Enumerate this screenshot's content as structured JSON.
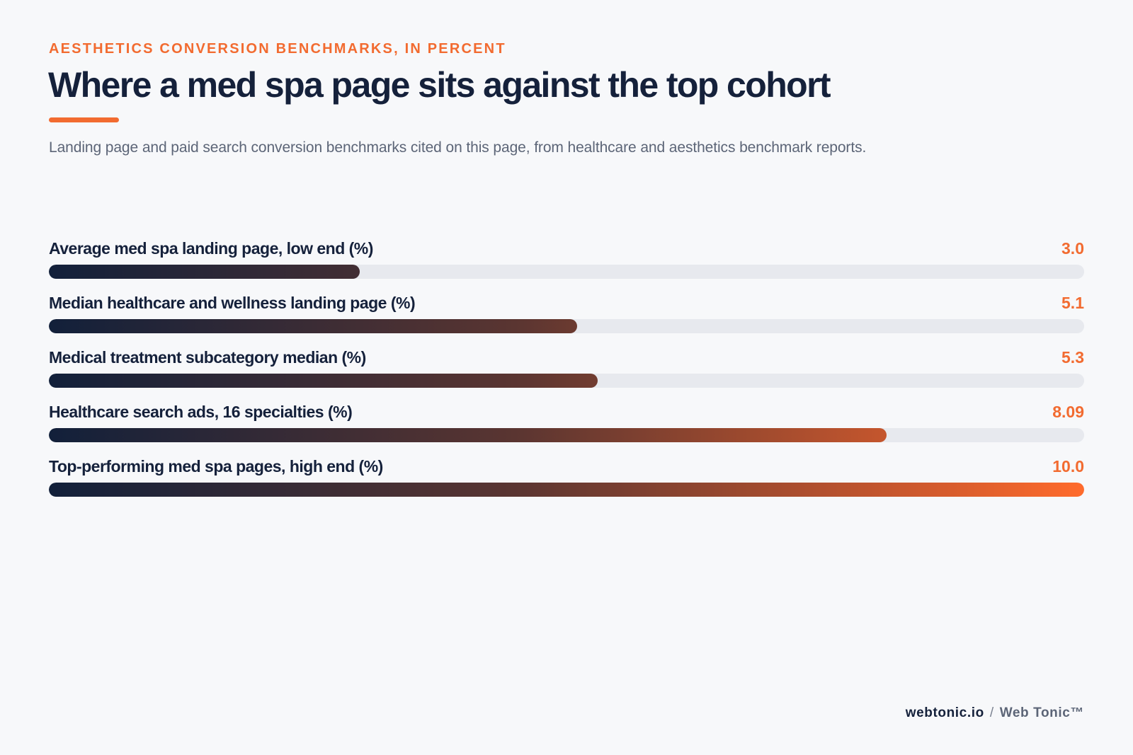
{
  "header": {
    "eyebrow": "AESTHETICS CONVERSION BENCHMARKS, IN PERCENT",
    "title": "Where a med spa page sits against the top cohort",
    "subtitle": "Landing page and paid search conversion benchmarks cited on this page, from healthcare and aesthetics benchmark reports."
  },
  "chart_data": {
    "type": "bar",
    "orientation": "horizontal",
    "title": "Where a med spa page sits against the top cohort",
    "subtitle": "Landing page and paid search conversion benchmarks cited on this page, from healthcare and aesthetics benchmark reports.",
    "categories": [
      "Average med spa landing page, low end (%)",
      "Median healthcare and wellness landing page (%)",
      "Medical treatment subcategory median (%)",
      "Healthcare search ads, 16 specialties (%)",
      "Top-performing med spa pages, high end (%)"
    ],
    "values": [
      3.0,
      5.1,
      5.3,
      8.09,
      10.0
    ],
    "value_labels": [
      "3.0",
      "5.1",
      "5.3",
      "8.09",
      "10.0"
    ],
    "xlim": [
      0,
      10
    ],
    "grid": false,
    "legend": "none",
    "colors": {
      "gradient_start": "#12203a",
      "gradient_end": "#ff6b2c",
      "value_text": "#f26b30",
      "track": "#e7e9ee"
    }
  },
  "footer": {
    "domain": "webtonic.io",
    "separator": "/",
    "brand": "Web Tonic™"
  }
}
